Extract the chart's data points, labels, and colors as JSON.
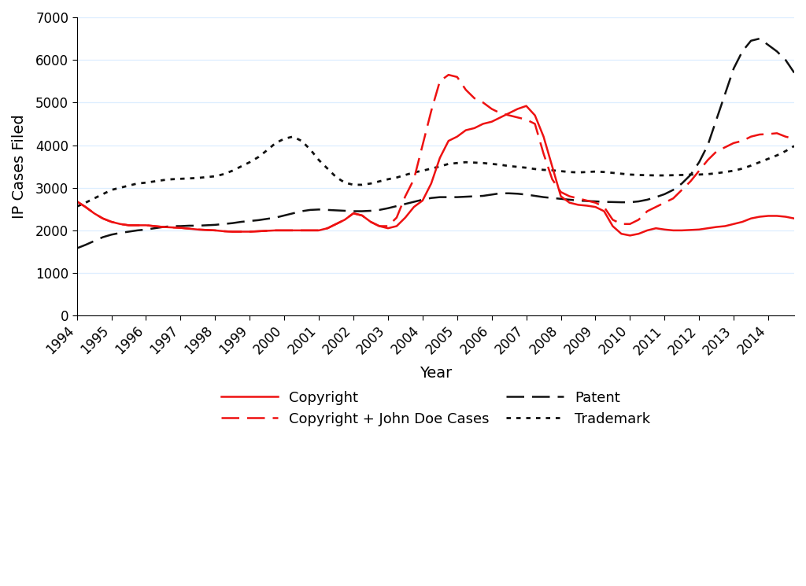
{
  "xlabel": "Year",
  "ylabel": "IP Cases Filed",
  "ylim": [
    0,
    7000
  ],
  "yticks": [
    0,
    1000,
    2000,
    3000,
    4000,
    5000,
    6000,
    7000
  ],
  "xlim": [
    1994,
    2014.75
  ],
  "xticks": [
    1994,
    1995,
    1996,
    1997,
    1998,
    1999,
    2000,
    2001,
    2002,
    2003,
    2004,
    2005,
    2006,
    2007,
    2008,
    2009,
    2010,
    2011,
    2012,
    2013,
    2014
  ],
  "background_color": "#ffffff",
  "grid_color": "#ddeeff",
  "series": {
    "copyright": {
      "label": "Copyright",
      "color": "#ee1111",
      "linestyle": "solid",
      "linewidth": 1.6,
      "x": [
        1994.0,
        1994.25,
        1994.5,
        1994.75,
        1995.0,
        1995.25,
        1995.5,
        1995.75,
        1996.0,
        1996.25,
        1996.5,
        1996.75,
        1997.0,
        1997.25,
        1997.5,
        1997.75,
        1998.0,
        1998.25,
        1998.5,
        1998.75,
        1999.0,
        1999.25,
        1999.5,
        1999.75,
        2000.0,
        2000.25,
        2000.5,
        2000.75,
        2001.0,
        2001.25,
        2001.5,
        2001.75,
        2002.0,
        2002.25,
        2002.5,
        2002.75,
        2003.0,
        2003.25,
        2003.5,
        2003.75,
        2004.0,
        2004.25,
        2004.5,
        2004.75,
        2005.0,
        2005.25,
        2005.5,
        2005.75,
        2006.0,
        2006.25,
        2006.5,
        2006.75,
        2007.0,
        2007.25,
        2007.5,
        2007.75,
        2008.0,
        2008.25,
        2008.5,
        2008.75,
        2009.0,
        2009.25,
        2009.5,
        2009.75,
        2010.0,
        2010.25,
        2010.5,
        2010.75,
        2011.0,
        2011.25,
        2011.5,
        2011.75,
        2012.0,
        2012.25,
        2012.5,
        2012.75,
        2013.0,
        2013.25,
        2013.5,
        2013.75,
        2014.0,
        2014.25,
        2014.5,
        2014.75
      ],
      "y": [
        2680,
        2550,
        2400,
        2280,
        2200,
        2150,
        2120,
        2120,
        2120,
        2100,
        2080,
        2070,
        2060,
        2040,
        2020,
        2010,
        2000,
        1980,
        1970,
        1970,
        1970,
        1980,
        1990,
        2000,
        2000,
        2000,
        2000,
        2000,
        2000,
        2050,
        2150,
        2250,
        2400,
        2350,
        2200,
        2100,
        2050,
        2100,
        2300,
        2550,
        2700,
        3100,
        3700,
        4100,
        4200,
        4350,
        4400,
        4500,
        4550,
        4650,
        4750,
        4850,
        4920,
        4700,
        4200,
        3500,
        2800,
        2650,
        2600,
        2580,
        2550,
        2450,
        2100,
        1920,
        1880,
        1920,
        2000,
        2050,
        2020,
        2000,
        2000,
        2010,
        2020,
        2050,
        2080,
        2100,
        2150,
        2200,
        2280,
        2320,
        2340,
        2340,
        2320,
        2280
      ]
    },
    "copyright_john_doe": {
      "label": "Copyright + John Doe Cases",
      "color": "#ee1111",
      "linestyle": "dashed",
      "linewidth": 1.6,
      "x": [
        1994.0,
        1994.25,
        1994.5,
        1994.75,
        1995.0,
        1995.25,
        1995.5,
        1995.75,
        1996.0,
        1996.25,
        1996.5,
        1996.75,
        1997.0,
        1997.25,
        1997.5,
        1997.75,
        1998.0,
        1998.25,
        1998.5,
        1998.75,
        1999.0,
        1999.25,
        1999.5,
        1999.75,
        2000.0,
        2000.25,
        2000.5,
        2000.75,
        2001.0,
        2001.25,
        2001.5,
        2001.75,
        2002.0,
        2002.25,
        2002.5,
        2002.75,
        2003.0,
        2003.25,
        2003.5,
        2003.75,
        2004.0,
        2004.25,
        2004.5,
        2004.75,
        2005.0,
        2005.25,
        2005.5,
        2005.75,
        2006.0,
        2006.25,
        2006.5,
        2006.75,
        2007.0,
        2007.25,
        2007.5,
        2007.75,
        2008.0,
        2008.25,
        2008.5,
        2008.75,
        2009.0,
        2009.25,
        2009.5,
        2009.75,
        2010.0,
        2010.25,
        2010.5,
        2010.75,
        2011.0,
        2011.25,
        2011.5,
        2011.75,
        2012.0,
        2012.25,
        2012.5,
        2012.75,
        2013.0,
        2013.25,
        2013.5,
        2013.75,
        2014.0,
        2014.25,
        2014.5,
        2014.75
      ],
      "y": [
        2680,
        2550,
        2400,
        2280,
        2200,
        2150,
        2120,
        2120,
        2120,
        2100,
        2080,
        2070,
        2060,
        2040,
        2020,
        2010,
        2000,
        1980,
        1970,
        1970,
        1970,
        1980,
        1990,
        2000,
        2000,
        2000,
        2000,
        2000,
        2000,
        2050,
        2150,
        2250,
        2400,
        2350,
        2200,
        2100,
        2100,
        2300,
        2800,
        3200,
        4000,
        4800,
        5500,
        5650,
        5600,
        5300,
        5100,
        5000,
        4850,
        4750,
        4700,
        4650,
        4600,
        4500,
        3800,
        3200,
        2900,
        2800,
        2750,
        2700,
        2650,
        2550,
        2250,
        2150,
        2150,
        2250,
        2450,
        2550,
        2650,
        2750,
        2950,
        3150,
        3400,
        3650,
        3850,
        3950,
        4050,
        4100,
        4200,
        4250,
        4260,
        4280,
        4200,
        4150
      ]
    },
    "patent": {
      "label": "Patent",
      "color": "#111111",
      "linestyle": "dashed",
      "linewidth": 1.6,
      "x": [
        1994.0,
        1994.25,
        1994.5,
        1994.75,
        1995.0,
        1995.25,
        1995.5,
        1995.75,
        1996.0,
        1996.25,
        1996.5,
        1996.75,
        1997.0,
        1997.25,
        1997.5,
        1997.75,
        1998.0,
        1998.25,
        1998.5,
        1998.75,
        1999.0,
        1999.25,
        1999.5,
        1999.75,
        2000.0,
        2000.25,
        2000.5,
        2000.75,
        2001.0,
        2001.25,
        2001.5,
        2001.75,
        2002.0,
        2002.25,
        2002.5,
        2002.75,
        2003.0,
        2003.25,
        2003.5,
        2003.75,
        2004.0,
        2004.25,
        2004.5,
        2004.75,
        2005.0,
        2005.25,
        2005.5,
        2005.75,
        2006.0,
        2006.25,
        2006.5,
        2006.75,
        2007.0,
        2007.25,
        2007.5,
        2007.75,
        2008.0,
        2008.25,
        2008.5,
        2008.75,
        2009.0,
        2009.25,
        2009.5,
        2009.75,
        2010.0,
        2010.25,
        2010.5,
        2010.75,
        2011.0,
        2011.25,
        2011.5,
        2011.75,
        2012.0,
        2012.25,
        2012.5,
        2012.75,
        2013.0,
        2013.25,
        2013.5,
        2013.75,
        2014.0,
        2014.25,
        2014.5,
        2014.75
      ],
      "y": [
        1580,
        1660,
        1750,
        1840,
        1900,
        1940,
        1970,
        2000,
        2020,
        2050,
        2080,
        2100,
        2100,
        2110,
        2110,
        2120,
        2130,
        2150,
        2170,
        2200,
        2220,
        2240,
        2270,
        2300,
        2350,
        2400,
        2450,
        2480,
        2490,
        2480,
        2470,
        2460,
        2450,
        2450,
        2460,
        2480,
        2520,
        2570,
        2620,
        2670,
        2720,
        2760,
        2780,
        2780,
        2780,
        2790,
        2800,
        2810,
        2840,
        2870,
        2870,
        2860,
        2840,
        2810,
        2780,
        2760,
        2740,
        2720,
        2700,
        2690,
        2680,
        2670,
        2665,
        2660,
        2660,
        2680,
        2720,
        2780,
        2850,
        2950,
        3100,
        3300,
        3600,
        4000,
        4600,
        5200,
        5800,
        6200,
        6450,
        6500,
        6350,
        6200,
        6000,
        5700
      ]
    },
    "trademark": {
      "label": "Trademark",
      "color": "#111111",
      "linestyle": "dotted",
      "linewidth": 1.8,
      "x": [
        1994.0,
        1994.25,
        1994.5,
        1994.75,
        1995.0,
        1995.25,
        1995.5,
        1995.75,
        1996.0,
        1996.25,
        1996.5,
        1996.75,
        1997.0,
        1997.25,
        1997.5,
        1997.75,
        1998.0,
        1998.25,
        1998.5,
        1998.75,
        1999.0,
        1999.25,
        1999.5,
        1999.75,
        2000.0,
        2000.25,
        2000.5,
        2000.75,
        2001.0,
        2001.25,
        2001.5,
        2001.75,
        2002.0,
        2002.25,
        2002.5,
        2002.75,
        2003.0,
        2003.25,
        2003.5,
        2003.75,
        2004.0,
        2004.25,
        2004.5,
        2004.75,
        2005.0,
        2005.25,
        2005.5,
        2005.75,
        2006.0,
        2006.25,
        2006.5,
        2006.75,
        2007.0,
        2007.25,
        2007.5,
        2007.75,
        2008.0,
        2008.25,
        2008.5,
        2008.75,
        2009.0,
        2009.25,
        2009.5,
        2009.75,
        2010.0,
        2010.25,
        2010.5,
        2010.75,
        2011.0,
        2011.25,
        2011.5,
        2011.75,
        2012.0,
        2012.25,
        2012.5,
        2012.75,
        2013.0,
        2013.25,
        2013.5,
        2013.75,
        2014.0,
        2014.25,
        2014.5,
        2014.75
      ],
      "y": [
        2560,
        2650,
        2750,
        2850,
        2950,
        3000,
        3050,
        3100,
        3120,
        3150,
        3180,
        3200,
        3210,
        3220,
        3230,
        3250,
        3270,
        3320,
        3400,
        3500,
        3600,
        3720,
        3880,
        4050,
        4150,
        4200,
        4100,
        3900,
        3650,
        3450,
        3250,
        3120,
        3070,
        3070,
        3100,
        3150,
        3200,
        3240,
        3300,
        3360,
        3400,
        3450,
        3500,
        3560,
        3580,
        3600,
        3590,
        3580,
        3560,
        3540,
        3510,
        3490,
        3470,
        3440,
        3420,
        3410,
        3390,
        3370,
        3360,
        3370,
        3380,
        3370,
        3350,
        3330,
        3310,
        3300,
        3295,
        3290,
        3290,
        3295,
        3300,
        3310,
        3310,
        3320,
        3340,
        3370,
        3400,
        3450,
        3520,
        3600,
        3680,
        3760,
        3860,
        3980
      ]
    }
  }
}
